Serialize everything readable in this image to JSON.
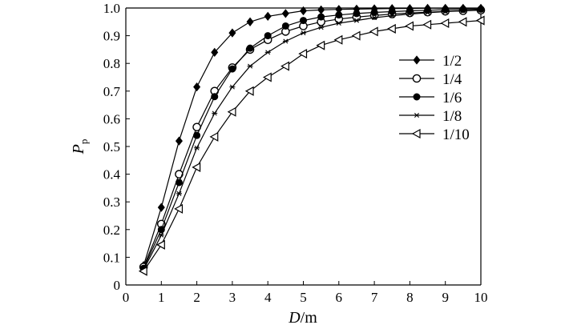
{
  "chart_data": {
    "type": "line",
    "title": "",
    "xlabel": {
      "main": "D",
      "unit": "/m"
    },
    "ylabel": {
      "main": "P",
      "sub": "p"
    },
    "xlim": [
      0,
      10
    ],
    "ylim": [
      0,
      1.0
    ],
    "xticks": [
      "0",
      "1",
      "2",
      "3",
      "4",
      "5",
      "6",
      "7",
      "8",
      "9",
      "10"
    ],
    "yticks": [
      "0",
      "0.1",
      "0.2",
      "0.3",
      "0.4",
      "0.5",
      "0.6",
      "0.7",
      "0.8",
      "0.9",
      "1.0"
    ],
    "grid": false,
    "legend_position": "right",
    "x": [
      0.5,
      1,
      1.5,
      2,
      2.5,
      3,
      3.5,
      4,
      4.5,
      5,
      5.5,
      6,
      6.5,
      7,
      7.5,
      8,
      8.5,
      9,
      9.5,
      10
    ],
    "series": [
      {
        "name": "1/2",
        "marker": "diamond-filled",
        "values": [
          0.07,
          0.28,
          0.52,
          0.715,
          0.84,
          0.91,
          0.95,
          0.97,
          0.98,
          0.99,
          0.993,
          0.995,
          0.996,
          0.997,
          0.998,
          0.998,
          0.999,
          0.999,
          0.999,
          0.999
        ]
      },
      {
        "name": "1/4",
        "marker": "circle-open",
        "values": [
          0.065,
          0.22,
          0.4,
          0.57,
          0.7,
          0.785,
          0.85,
          0.885,
          0.915,
          0.935,
          0.95,
          0.96,
          0.967,
          0.973,
          0.978,
          0.982,
          0.985,
          0.988,
          0.99,
          0.992
        ]
      },
      {
        "name": "1/6",
        "marker": "circle-filled",
        "values": [
          0.06,
          0.2,
          0.37,
          0.54,
          0.68,
          0.78,
          0.855,
          0.9,
          0.935,
          0.955,
          0.968,
          0.975,
          0.98,
          0.984,
          0.987,
          0.99,
          0.992,
          0.994,
          0.995,
          0.996
        ]
      },
      {
        "name": "1/8",
        "marker": "star",
        "values": [
          0.055,
          0.18,
          0.33,
          0.495,
          0.62,
          0.715,
          0.79,
          0.84,
          0.88,
          0.91,
          0.93,
          0.945,
          0.955,
          0.965,
          0.972,
          0.978,
          0.983,
          0.987,
          0.99,
          0.993
        ]
      },
      {
        "name": "1/10",
        "marker": "triangle-left-open",
        "values": [
          0.05,
          0.145,
          0.275,
          0.425,
          0.535,
          0.625,
          0.7,
          0.75,
          0.79,
          0.835,
          0.865,
          0.885,
          0.9,
          0.915,
          0.925,
          0.935,
          0.94,
          0.945,
          0.95,
          0.955
        ]
      }
    ]
  }
}
